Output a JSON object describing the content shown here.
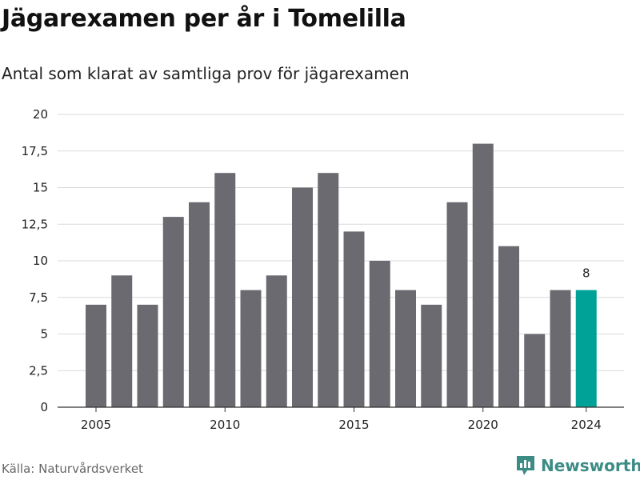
{
  "title": "Jägarexamen per år i Tomelilla",
  "subtitle": "Antal som klarat av samtliga prov för jägarexamen",
  "source": "Källa: Naturvårdsverket",
  "brand": {
    "name": "Newsworthy",
    "icon": "newsworthy-logo-icon",
    "color": "#3b8c85"
  },
  "colors": {
    "bar": "#6b6a70",
    "highlight": "#00a196",
    "grid": "#d9d9d9",
    "axis": "#333333"
  },
  "chart_data": {
    "type": "bar",
    "categories": [
      2005,
      2006,
      2007,
      2008,
      2009,
      2010,
      2011,
      2012,
      2013,
      2014,
      2015,
      2016,
      2017,
      2018,
      2019,
      2020,
      2021,
      2022,
      2023,
      2024
    ],
    "values": [
      7,
      9,
      7,
      13,
      14,
      16,
      8,
      9,
      15,
      16,
      12,
      10,
      8,
      7,
      14,
      18,
      11,
      5,
      8,
      8
    ],
    "highlight_index": 19,
    "data_labels": [
      {
        "index": 19,
        "text": "8"
      }
    ],
    "ylim": [
      0,
      20
    ],
    "yticks": [
      0,
      2.5,
      5,
      7.5,
      10,
      12.5,
      15,
      17.5,
      20
    ],
    "ytick_labels": [
      "0",
      "2,5",
      "5",
      "7,5",
      "10",
      "12,5",
      "15",
      "17,5",
      "20"
    ],
    "xtick_labels": [
      "2005",
      "2010",
      "2015",
      "2020",
      "2024"
    ],
    "grid": true,
    "xlabel": "",
    "ylabel": ""
  }
}
